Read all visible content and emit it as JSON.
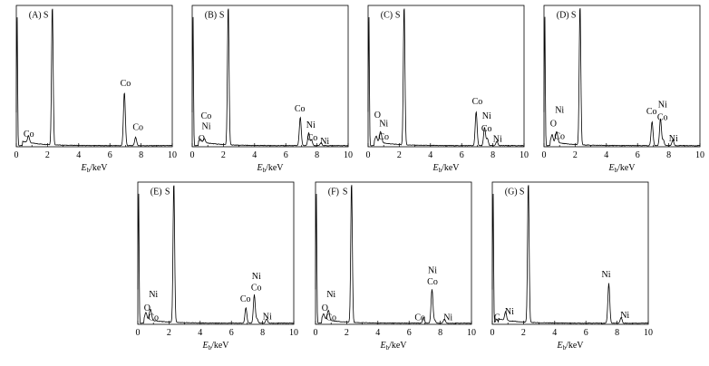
{
  "chart_data": [
    {
      "type": "line",
      "panel_label": "(A)",
      "xlabel_main": "E",
      "xlabel_sub": "b",
      "xlabel_unit": "/keV",
      "xlim": [
        0,
        10
      ],
      "x_ticks": [
        0,
        2,
        4,
        6,
        8,
        10
      ],
      "peaks": [
        {
          "element": "Co",
          "energy": 0.78,
          "height": 0.05
        },
        {
          "element": "S",
          "energy": 2.31,
          "height": 1.0
        },
        {
          "element": "Co",
          "energy": 6.93,
          "height": 0.38
        },
        {
          "element": "Co",
          "energy": 7.65,
          "height": 0.06
        }
      ],
      "labels": [
        {
          "text": "(A)",
          "x": 0.8,
          "y": 0.955
        },
        {
          "text": "S",
          "x": 1.9,
          "y": 0.955
        },
        {
          "text": "Co",
          "x": 0.8,
          "y": 0.07
        },
        {
          "text": "Co",
          "x": 7.0,
          "y": 0.43
        },
        {
          "text": "Co",
          "x": 7.8,
          "y": 0.12
        }
      ]
    },
    {
      "type": "line",
      "panel_label": "(B)",
      "xlabel_main": "E",
      "xlabel_sub": "b",
      "xlabel_unit": "/keV",
      "xlim": [
        0,
        10
      ],
      "x_ticks": [
        0,
        2,
        4,
        6,
        8,
        10
      ],
      "peaks": [
        {
          "element": "O",
          "energy": 0.52,
          "height": 0.02
        },
        {
          "element": "Co",
          "energy": 0.78,
          "height": 0.03
        },
        {
          "element": "S",
          "energy": 2.31,
          "height": 1.0
        },
        {
          "element": "Co",
          "energy": 6.93,
          "height": 0.2
        },
        {
          "element": "Ni",
          "energy": 7.47,
          "height": 0.09
        },
        {
          "element": "Co",
          "energy": 7.65,
          "height": 0.04
        },
        {
          "element": "Ni",
          "energy": 8.26,
          "height": 0.02
        }
      ],
      "labels": [
        {
          "text": "(B)",
          "x": 0.8,
          "y": 0.955
        },
        {
          "text": "S",
          "x": 1.9,
          "y": 0.955
        },
        {
          "text": "Co",
          "x": 0.9,
          "y": 0.2
        },
        {
          "text": "Ni",
          "x": 0.9,
          "y": 0.125
        },
        {
          "text": "O",
          "x": 0.6,
          "y": 0.04
        },
        {
          "text": "Co",
          "x": 6.9,
          "y": 0.25
        },
        {
          "text": "Ni",
          "x": 7.6,
          "y": 0.135
        },
        {
          "text": "Co",
          "x": 7.7,
          "y": 0.045
        },
        {
          "text": "Ni",
          "x": 8.5,
          "y": 0.02
        }
      ]
    },
    {
      "type": "line",
      "panel_label": "(C)",
      "xlabel_main": "E",
      "xlabel_sub": "b",
      "xlabel_unit": "/keV",
      "xlim": [
        0,
        10
      ],
      "x_ticks": [
        0,
        2,
        4,
        6,
        8,
        10
      ],
      "peaks": [
        {
          "element": "O",
          "energy": 0.52,
          "height": 0.04
        },
        {
          "element": "Co",
          "energy": 0.78,
          "height": 0.06
        },
        {
          "element": "Ni",
          "energy": 0.85,
          "height": 0.03
        },
        {
          "element": "S",
          "energy": 2.31,
          "height": 1.0
        },
        {
          "element": "Co",
          "energy": 6.93,
          "height": 0.24
        },
        {
          "element": "Ni",
          "energy": 7.47,
          "height": 0.13
        },
        {
          "element": "Co",
          "energy": 7.65,
          "height": 0.05
        },
        {
          "element": "Ni",
          "energy": 8.26,
          "height": 0.03
        }
      ],
      "labels": [
        {
          "text": "(C)",
          "x": 0.8,
          "y": 0.955
        },
        {
          "text": "S",
          "x": 1.9,
          "y": 0.955
        },
        {
          "text": "O",
          "x": 0.6,
          "y": 0.205
        },
        {
          "text": "Ni",
          "x": 1.0,
          "y": 0.145
        },
        {
          "text": "Co",
          "x": 1.0,
          "y": 0.05
        },
        {
          "text": "Co",
          "x": 7.0,
          "y": 0.3
        },
        {
          "text": "Ni",
          "x": 7.6,
          "y": 0.2
        },
        {
          "text": "Co",
          "x": 7.6,
          "y": 0.11
        },
        {
          "text": "Ni",
          "x": 8.3,
          "y": 0.035
        }
      ]
    },
    {
      "type": "line",
      "panel_label": "(D)",
      "xlabel_main": "E",
      "xlabel_sub": "b",
      "xlabel_unit": "/keV",
      "xlim": [
        0,
        10
      ],
      "x_ticks": [
        0,
        2,
        4,
        6,
        8,
        10
      ],
      "peaks": [
        {
          "element": "O",
          "energy": 0.52,
          "height": 0.05
        },
        {
          "element": "Co",
          "energy": 0.78,
          "height": 0.05
        },
        {
          "element": "Ni",
          "energy": 0.85,
          "height": 0.04
        },
        {
          "element": "S",
          "energy": 2.31,
          "height": 1.0
        },
        {
          "element": "Co",
          "energy": 6.93,
          "height": 0.17
        },
        {
          "element": "Ni",
          "energy": 7.47,
          "height": 0.19
        },
        {
          "element": "Co",
          "energy": 7.65,
          "height": 0.04
        },
        {
          "element": "Ni",
          "energy": 8.26,
          "height": 0.04
        }
      ],
      "labels": [
        {
          "text": "(D)",
          "x": 0.8,
          "y": 0.955
        },
        {
          "text": "S",
          "x": 1.9,
          "y": 0.955
        },
        {
          "text": "Ni",
          "x": 1.0,
          "y": 0.24
        },
        {
          "text": "O",
          "x": 0.6,
          "y": 0.145
        },
        {
          "text": "Co",
          "x": 1.0,
          "y": 0.055
        },
        {
          "text": "Co",
          "x": 6.9,
          "y": 0.23
        },
        {
          "text": "Ni",
          "x": 7.6,
          "y": 0.28
        },
        {
          "text": "Co",
          "x": 7.6,
          "y": 0.19
        },
        {
          "text": "Ni",
          "x": 8.3,
          "y": 0.04
        }
      ]
    },
    {
      "type": "line",
      "panel_label": "(E)",
      "xlabel_main": "E",
      "xlabel_sub": "b",
      "xlabel_unit": "/keV",
      "xlim": [
        0,
        10
      ],
      "x_ticks": [
        0,
        2,
        4,
        6,
        8,
        10
      ],
      "peaks": [
        {
          "element": "O",
          "energy": 0.52,
          "height": 0.05
        },
        {
          "element": "Co",
          "energy": 0.78,
          "height": 0.05
        },
        {
          "element": "Ni",
          "energy": 0.85,
          "height": 0.04
        },
        {
          "element": "S",
          "energy": 2.31,
          "height": 1.0
        },
        {
          "element": "Co",
          "energy": 6.93,
          "height": 0.11
        },
        {
          "element": "Ni",
          "energy": 7.47,
          "height": 0.2
        },
        {
          "element": "Co",
          "energy": 7.65,
          "height": 0.03
        },
        {
          "element": "Ni",
          "energy": 8.26,
          "height": 0.03
        }
      ],
      "labels": [
        {
          "text": "(E)",
          "x": 0.8,
          "y": 0.955
        },
        {
          "text": "S",
          "x": 1.9,
          "y": 0.955
        },
        {
          "text": "Ni",
          "x": 1.0,
          "y": 0.19
        },
        {
          "text": "O",
          "x": 0.6,
          "y": 0.095
        },
        {
          "text": "Co",
          "x": 1.0,
          "y": 0.03
        },
        {
          "text": "Ni",
          "x": 7.6,
          "y": 0.32
        },
        {
          "text": "Co",
          "x": 7.6,
          "y": 0.24
        },
        {
          "text": "Co",
          "x": 6.9,
          "y": 0.16
        },
        {
          "text": "Ni",
          "x": 8.3,
          "y": 0.035
        }
      ]
    },
    {
      "type": "line",
      "panel_label": "(F)",
      "xlabel_main": "E",
      "xlabel_sub": "b",
      "xlabel_unit": "/keV",
      "xlim": [
        0,
        10
      ],
      "x_ticks": [
        0,
        2,
        4,
        6,
        8,
        10
      ],
      "peaks": [
        {
          "element": "O",
          "energy": 0.52,
          "height": 0.04
        },
        {
          "element": "Co",
          "energy": 0.78,
          "height": 0.03
        },
        {
          "element": "Ni",
          "energy": 0.85,
          "height": 0.05
        },
        {
          "element": "S",
          "energy": 2.31,
          "height": 1.0
        },
        {
          "element": "Co",
          "energy": 6.93,
          "height": 0.04
        },
        {
          "element": "Ni",
          "energy": 7.47,
          "height": 0.24
        },
        {
          "element": "Co",
          "energy": 7.65,
          "height": 0.02
        },
        {
          "element": "Ni",
          "energy": 8.26,
          "height": 0.03
        }
      ],
      "labels": [
        {
          "text": "(F)",
          "x": 0.8,
          "y": 0.955
        },
        {
          "text": "S",
          "x": 1.9,
          "y": 0.955
        },
        {
          "text": "Ni",
          "x": 1.0,
          "y": 0.19
        },
        {
          "text": "O",
          "x": 0.6,
          "y": 0.095
        },
        {
          "text": "Co",
          "x": 1.0,
          "y": 0.03
        },
        {
          "text": "Ni",
          "x": 7.5,
          "y": 0.36
        },
        {
          "text": "Co",
          "x": 7.5,
          "y": 0.28
        },
        {
          "text": "Co",
          "x": 6.7,
          "y": 0.03
        },
        {
          "text": "Ni",
          "x": 8.5,
          "y": 0.03
        }
      ]
    },
    {
      "type": "line",
      "panel_label": "(G)",
      "xlabel_main": "E",
      "xlabel_sub": "b",
      "xlabel_unit": "/keV",
      "xlim": [
        0,
        10
      ],
      "x_ticks": [
        0,
        2,
        4,
        6,
        8,
        10
      ],
      "peaks": [
        {
          "element": "C",
          "energy": 0.28,
          "height": 0.03
        },
        {
          "element": "Ni",
          "energy": 0.85,
          "height": 0.06
        },
        {
          "element": "S",
          "energy": 2.31,
          "height": 1.0
        },
        {
          "element": "Ni",
          "energy": 7.47,
          "height": 0.28
        },
        {
          "element": "Ni",
          "energy": 8.26,
          "height": 0.04
        }
      ],
      "labels": [
        {
          "text": "(G)",
          "x": 0.8,
          "y": 0.955
        },
        {
          "text": "S",
          "x": 1.9,
          "y": 0.955
        },
        {
          "text": "C",
          "x": 0.3,
          "y": 0.03
        },
        {
          "text": "Ni",
          "x": 1.1,
          "y": 0.07
        },
        {
          "text": "Ni",
          "x": 7.3,
          "y": 0.33
        },
        {
          "text": "Ni",
          "x": 8.5,
          "y": 0.045
        }
      ]
    }
  ]
}
